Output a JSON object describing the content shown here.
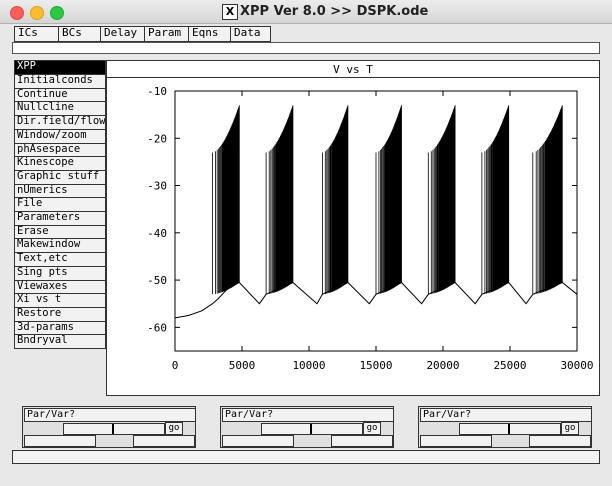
{
  "window": {
    "title": "XPP Ver 8.0 >> DSPK.ode"
  },
  "top_buttons": [
    "ICs",
    "BCs",
    "Delay",
    "Param",
    "Eqns",
    "Data"
  ],
  "menu": {
    "header": "XPP",
    "items": [
      "Initialconds",
      "Continue",
      "Nullcline",
      "Dir.field/flow",
      "Window/zoom",
      "phAsespace",
      "Kinescope",
      "Graphic stuff",
      "nUmerics",
      "File",
      "Parameters",
      "Erase",
      "Makewindow",
      "Text,etc",
      "Sing pts",
      "Viewaxes",
      "Xi vs t",
      "Restore",
      "3d-params",
      "Bndryval"
    ]
  },
  "plot": {
    "title": "V vs T"
  },
  "chart_data": {
    "type": "line",
    "title": "V vs T",
    "xlabel": "",
    "ylabel": "",
    "xlim": [
      0,
      30000
    ],
    "ylim": [
      -65,
      -10
    ],
    "x_ticks": [
      0,
      5000,
      10000,
      15000,
      20000,
      25000,
      30000
    ],
    "y_ticks": [
      -10,
      -20,
      -30,
      -40,
      -50,
      -60
    ],
    "series": [
      {
        "values_description_points": [
          [
            0,
            -58
          ],
          [
            1000,
            -57.5
          ],
          [
            2000,
            -56.5
          ],
          [
            2800,
            -55
          ],
          [
            3200,
            -54
          ],
          [
            4200,
            -51
          ],
          [
            4800,
            -50.5
          ],
          [
            6300,
            -55
          ],
          [
            6800,
            -53
          ],
          [
            8800,
            -50.5
          ],
          [
            10600,
            -55
          ],
          [
            11000,
            -53
          ],
          [
            12900,
            -50.5
          ],
          [
            14500,
            -55
          ],
          [
            15000,
            -53
          ],
          [
            16900,
            -50.5
          ],
          [
            18400,
            -55
          ],
          [
            18900,
            -53
          ],
          [
            20900,
            -50.5
          ],
          [
            22400,
            -55
          ],
          [
            22900,
            -53
          ],
          [
            24900,
            -50.5
          ],
          [
            26200,
            -55
          ],
          [
            26700,
            -53
          ],
          [
            28900,
            -50.5
          ],
          [
            30000,
            -53
          ]
        ],
        "burst_starts": [
          2800,
          6800,
          11000,
          15000,
          18900,
          22900,
          26700
        ],
        "burst_ends": [
          4800,
          8800,
          12900,
          16900,
          20900,
          24900,
          28900
        ],
        "spike_peak": -23
      }
    ],
    "grid": false
  },
  "sliders": [
    {
      "label": "Par/Var?",
      "go": "go"
    },
    {
      "label": "Par/Var?",
      "go": "go"
    },
    {
      "label": "Par/Var?",
      "go": "go"
    }
  ]
}
